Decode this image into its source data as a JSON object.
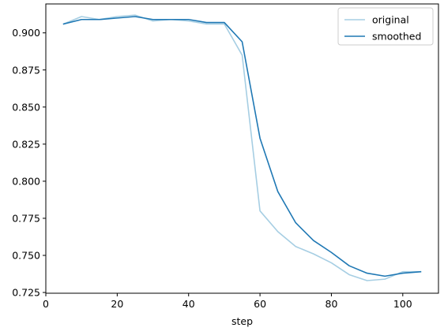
{
  "chart_data": {
    "type": "line",
    "xlabel": "step",
    "ylabel": "",
    "xlim": [
      0,
      110
    ],
    "ylim": [
      0.7245,
      0.9195
    ],
    "xticks": [
      0,
      20,
      40,
      60,
      80,
      100
    ],
    "yticks": [
      0.725,
      0.75,
      0.775,
      0.8,
      0.825,
      0.85,
      0.875,
      0.9
    ],
    "ytick_labels": [
      "0.725",
      "0.750",
      "0.775",
      "0.800",
      "0.825",
      "0.850",
      "0.875",
      "0.900"
    ],
    "grid": false,
    "legend_position": "upper-right",
    "x": [
      5,
      10,
      15,
      20,
      25,
      30,
      35,
      40,
      45,
      50,
      55,
      60,
      65,
      70,
      75,
      80,
      85,
      90,
      95,
      100,
      105
    ],
    "series": [
      {
        "name": "original",
        "color": "#a6cee3",
        "values": [
          0.906,
          0.911,
          0.909,
          0.911,
          0.912,
          0.908,
          0.909,
          0.908,
          0.906,
          0.906,
          0.885,
          0.78,
          0.766,
          0.756,
          0.751,
          0.745,
          0.737,
          0.733,
          0.734,
          0.739,
          0.739
        ]
      },
      {
        "name": "smoothed",
        "color": "#1f78b4",
        "values": [
          0.906,
          0.909,
          0.909,
          0.91,
          0.911,
          0.909,
          0.909,
          0.909,
          0.907,
          0.907,
          0.894,
          0.829,
          0.793,
          0.772,
          0.76,
          0.752,
          0.743,
          0.738,
          0.736,
          0.738,
          0.739
        ]
      }
    ]
  }
}
